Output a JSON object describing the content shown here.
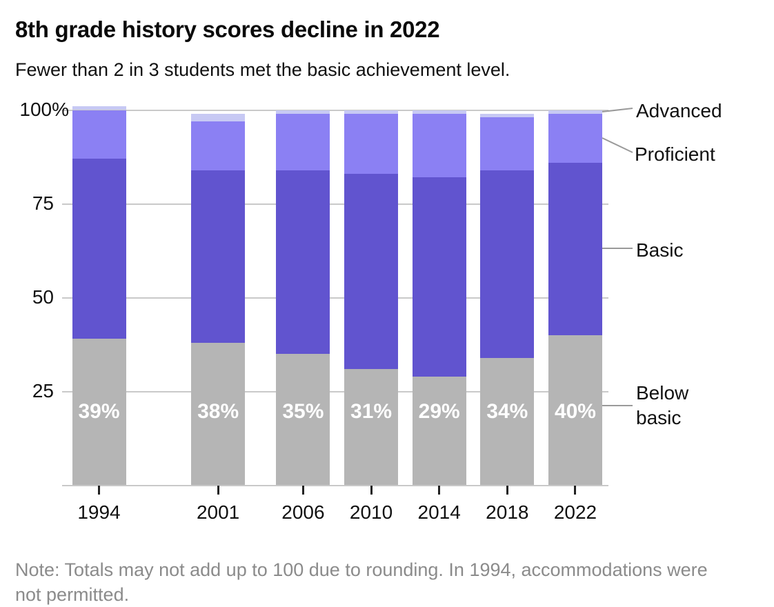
{
  "title": "8th grade history scores decline in 2022",
  "subtitle": "Fewer than 2 in 3 students met the basic achievement level.",
  "note": "Note: Totals may not add up to 100 due to rounding. In 1994, accommodations were not permitted.",
  "chart_data": {
    "type": "bar",
    "stacked": true,
    "title": "8th grade history scores decline in 2022",
    "subtitle": "Fewer than 2 in 3 students met the basic achievement level.",
    "categories": [
      "1994",
      "2001",
      "2006",
      "2010",
      "2014",
      "2018",
      "2022"
    ],
    "series": [
      {
        "name": "Below basic",
        "color": "#b5b5b5",
        "values": [
          39,
          38,
          35,
          31,
          29,
          34,
          40
        ]
      },
      {
        "name": "Basic",
        "color": "#6154cf",
        "values": [
          48,
          46,
          49,
          52,
          53,
          50,
          46
        ]
      },
      {
        "name": "Proficient",
        "color": "#8b80f3",
        "values": [
          13,
          13,
          15,
          16,
          17,
          14,
          13
        ]
      },
      {
        "name": "Advanced",
        "color": "#c7c9f4",
        "values": [
          1,
          2,
          1,
          1,
          1,
          1,
          1
        ]
      }
    ],
    "bar_labels": [
      "39%",
      "38%",
      "35%",
      "31%",
      "29%",
      "34%",
      "40%"
    ],
    "y_ticks": [
      {
        "value": 100,
        "label": "100%"
      },
      {
        "value": 75,
        "label": "75"
      },
      {
        "value": 50,
        "label": "50"
      },
      {
        "value": 25,
        "label": "25"
      }
    ],
    "ylim": [
      0,
      100
    ],
    "x_axis_time_scaled": true,
    "grid": true,
    "legend": [
      "Advanced",
      "Proficient",
      "Basic",
      "Below basic"
    ],
    "legend_position": "right",
    "colors": {
      "below_basic": "#b5b5b5",
      "basic": "#6154cf",
      "proficient": "#8b80f3",
      "advanced": "#c7c9f4",
      "gridline": "#c9c9c9",
      "tick": "#222222",
      "note_text": "#8b8b8b",
      "bar_label_text": "#ffffff",
      "leader_line": "#9a9a9a"
    }
  }
}
